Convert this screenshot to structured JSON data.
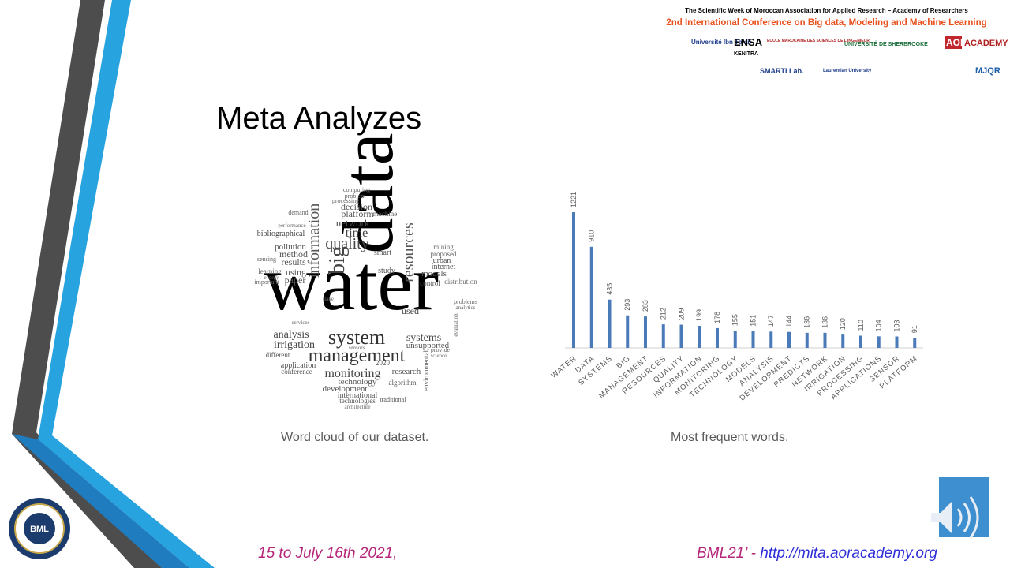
{
  "header": {
    "line1": "The Scientific Week of Moroccan Association for Applied Research – Academy of Researchers",
    "line2": "2nd International Conference on Big data, Modeling and Machine Learning",
    "logos": [
      "Université Ibn Tofail",
      "ENSA",
      "KENITRA",
      "ECOLE MAROCAINE DES SCIENCES DE L'INGENIEUR",
      "UNIVERSITÉ DE SHERBROOKE",
      "AOR",
      "ACADEMY",
      "SMARTI Lab.",
      "Laurentian University",
      "MJQR"
    ]
  },
  "title": "Meta Analyzes",
  "word_cloud": {
    "words": [
      "water",
      "data",
      "management",
      "system",
      "monitoring",
      "quality",
      "big",
      "information",
      "resources",
      "time",
      "network",
      "platform",
      "decision",
      "analysis",
      "irrigation",
      "systems",
      "unsupported",
      "research",
      "technology",
      "development",
      "international",
      "technologies",
      "bibliographical",
      "pollution",
      "method",
      "results",
      "using",
      "paper",
      "learning",
      "sensing",
      "important",
      "models",
      "control",
      "internet",
      "proposed",
      "mining",
      "distribution",
      "problems",
      "analytics",
      "application",
      "conference",
      "different",
      "smart",
      "study",
      "used",
      "sensors",
      "2020",
      "algorithm",
      "traditional",
      "architecture",
      "machine",
      "processing",
      "computing",
      "problem",
      "demand",
      "performance",
      "energy",
      "services",
      "lake",
      "environmental",
      "science",
      "provide",
      "evaluation",
      "urban"
    ],
    "caption": "Word cloud of our dataset."
  },
  "chart_data": {
    "type": "bar",
    "categories": [
      "WATER",
      "DATA",
      "SYSTEMS",
      "BIG",
      "MANAGEMENT",
      "RESOURCES",
      "QUALITY",
      "INFORMATION",
      "MONITORING",
      "TECHNOLOGY",
      "MODELS",
      "ANALYSIS",
      "DEVELOPMENT",
      "PREDICTS",
      "NETWORK",
      "IRRIGATION",
      "PROCESSING",
      "APPLICATIONS",
      "SENSOR",
      "PLATFORM"
    ],
    "values": [
      1221,
      910,
      435,
      293,
      283,
      212,
      209,
      199,
      178,
      155,
      151,
      147,
      144,
      136,
      136,
      120,
      110,
      104,
      103,
      91
    ],
    "color": "#4a7ab8",
    "caption": "Most frequent words."
  },
  "footer": {
    "date": "15 to July 16th 2021,",
    "prefix": "BML21’ -",
    "link": "http://mita.aoracademy.org",
    "badge": "BML"
  }
}
